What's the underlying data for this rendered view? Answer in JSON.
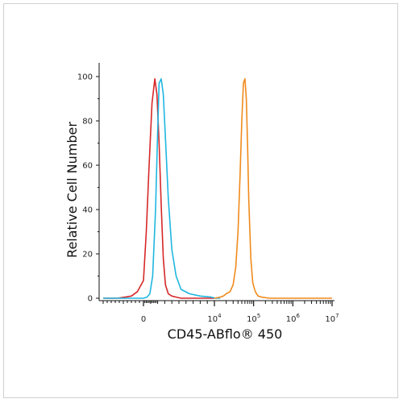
{
  "chart_data": {
    "type": "line",
    "title": "",
    "xlabel": "CD45-ABflo® 450",
    "ylabel": "Relative Cell Number",
    "ylim": [
      0,
      100
    ],
    "xscale": "biexponential (linear near 0, log above)",
    "xlim": [
      -2000,
      10000000
    ],
    "x_ticks": [
      {
        "base": "0",
        "exp": ""
      },
      {
        "base": "10",
        "exp": "4"
      },
      {
        "base": "10",
        "exp": "5"
      },
      {
        "base": "10",
        "exp": "6"
      },
      {
        "base": "10",
        "exp": "7"
      }
    ],
    "y_ticks": [
      "0",
      "20",
      "40",
      "60",
      "80",
      "100"
    ],
    "grid": false,
    "legend": "none",
    "series": [
      {
        "color": "#d62728",
        "x": [
          -2000,
          -1300,
          -900,
          -600,
          -300,
          0,
          400,
          800,
          1200,
          1600,
          1900,
          2200,
          2500,
          2800,
          3100,
          3500,
          4000,
          4600,
          5300,
          7000,
          10000
        ],
        "y": [
          0,
          0,
          0.5,
          1,
          3,
          8,
          30,
          60,
          88,
          99,
          92,
          70,
          42,
          18,
          6,
          2,
          1,
          0.5,
          0,
          0,
          0
        ]
      },
      {
        "color": "#1fb6e0",
        "x": [
          -2000,
          -1000,
          0,
          500,
          900,
          1300,
          1700,
          2000,
          2200,
          2500,
          2800,
          3100,
          3500,
          4000,
          4600,
          5300,
          6500,
          8000,
          9500,
          11000,
          14000
        ],
        "y": [
          0,
          0,
          0,
          0.5,
          2,
          10,
          40,
          75,
          97,
          99,
          92,
          72,
          45,
          22,
          10,
          4,
          2,
          1,
          0.5,
          0,
          0
        ]
      },
      {
        "color": "#f08a1c",
        "x": [
          10000,
          14000,
          17000,
          20000,
          25000,
          30000,
          35000,
          40000,
          45000,
          50000,
          55000,
          60000,
          65000,
          70000,
          75000,
          85000,
          95000,
          110000,
          130000,
          160000,
          250000,
          1000000,
          10000000
        ],
        "y": [
          0,
          0.5,
          1,
          2,
          3,
          6,
          14,
          30,
          55,
          80,
          97,
          99,
          90,
          70,
          45,
          18,
          7,
          3,
          1,
          0.5,
          0,
          0,
          0
        ]
      }
    ]
  }
}
